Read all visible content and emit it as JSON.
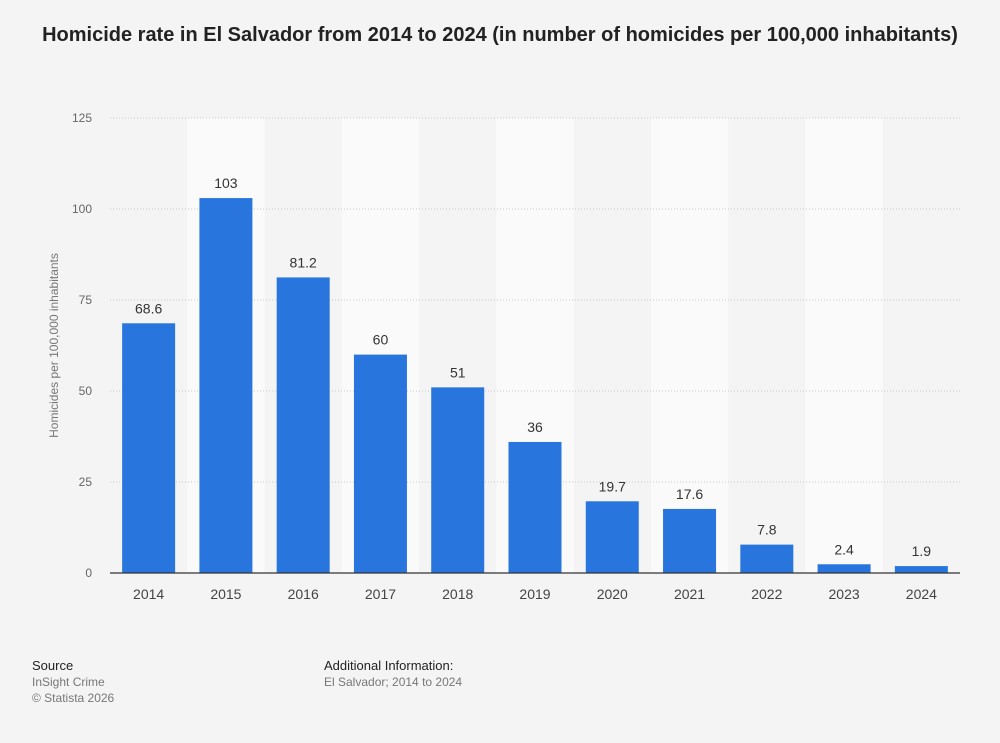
{
  "chart_data": {
    "type": "bar",
    "title": "Homicide rate in El Salvador from 2014 to 2024 (in number of homicides per 100,000 inhabitants)",
    "categories": [
      "2014",
      "2015",
      "2016",
      "2017",
      "2018",
      "2019",
      "2020",
      "2021",
      "2022",
      "2023",
      "2024"
    ],
    "values": [
      68.6,
      103,
      81.2,
      60,
      51,
      36,
      19.7,
      17.6,
      7.8,
      2.4,
      1.9
    ],
    "xlabel": "",
    "ylabel": "Homicides per 100,000 inhabitants",
    "ylim": [
      0,
      125
    ],
    "yticks": [
      0,
      25,
      50,
      75,
      100,
      125
    ],
    "grid": true,
    "bar_color": "#2876dd"
  },
  "footer": {
    "source_heading": "Source",
    "source_lines": [
      "InSight Crime",
      "© Statista 2026"
    ],
    "info_heading": "Additional Information:",
    "info_text": "El Salvador; 2014 to 2024"
  }
}
